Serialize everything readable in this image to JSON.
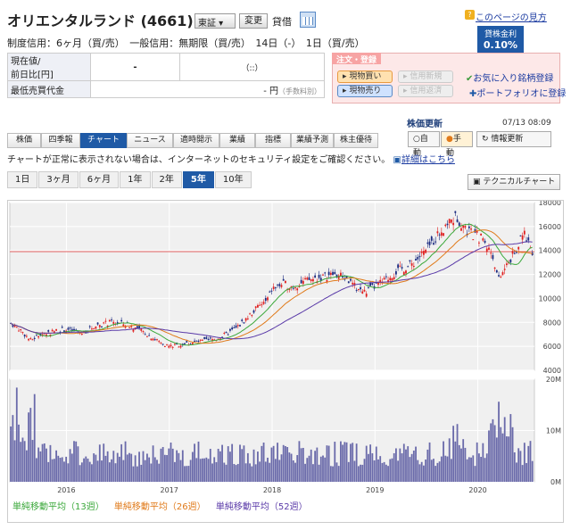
{
  "header": {
    "title": "オリエンタルランド (4661)",
    "market": "東証",
    "change_btn": "変更",
    "kashi": "貸借",
    "help_link": "このページの見方"
  },
  "kinri": {
    "label": "貸株金利",
    "value": "0.10%"
  },
  "credit_info": "制度信用：6ヶ月（買/売）　一般信用：無期限（買/売）　14日（-）　1日（買/売）",
  "quote": {
    "price_label": "現在値/",
    "prev_label": "前日比[円]",
    "price_value": "-",
    "time_value": "（::）",
    "min_label": "最低売買代金",
    "min_value": "- 円",
    "min_note": "（手数料別）"
  },
  "order": {
    "head": "注文・登録",
    "buy": "現物買い",
    "sell": "現物売り",
    "credit_new": "信用新規",
    "credit_close": "信用返済",
    "fav": "お気に入り銘柄登録",
    "portfolio": "ポートフォリオに登録"
  },
  "update": {
    "label": "株価更新",
    "date": "07/13 08:09",
    "auto": "自動",
    "manual": "手動",
    "refresh": "情報更新"
  },
  "tabs": [
    "株価",
    "四季報",
    "チャート",
    "ニュース",
    "適時開示",
    "業績",
    "指標",
    "業績予測",
    "株主優待"
  ],
  "active_tab": 2,
  "notice": "チャートが正常に表示されない場合は、インターネットのセキュリティ設定をご確認ください。",
  "notice_link": "詳細はこちら",
  "periods": [
    "1日",
    "3ヶ月",
    "6ヶ月",
    "1年",
    "2年",
    "5年",
    "10年"
  ],
  "active_period": 5,
  "tech_chart": "テクニカルチャート",
  "legend": {
    "ma13": "単純移動平均（13週）",
    "ma26": "単純移動平均（26週）",
    "ma52": "単純移動平均（52週）",
    "color13": "#3aa83a",
    "color26": "#e07a1a",
    "color52": "#5a3aa8"
  },
  "chart_data": {
    "type": "line",
    "x_labels": [
      "2016",
      "2017",
      "2018",
      "2019",
      "2020"
    ],
    "price_axis": [
      4000,
      6000,
      8000,
      10000,
      12000,
      14000,
      16000,
      18000
    ],
    "volume_axis": [
      "0M",
      "10M",
      "20M"
    ],
    "price_ylim": [
      4000,
      18000
    ],
    "reference_line": 13900,
    "price_series": [
      [
        2015.45,
        8000
      ],
      [
        2015.55,
        7400
      ],
      [
        2015.65,
        6500
      ],
      [
        2015.75,
        7000
      ],
      [
        2015.9,
        7300
      ],
      [
        2016.0,
        7400
      ],
      [
        2016.15,
        7100
      ],
      [
        2016.3,
        7800
      ],
      [
        2016.45,
        8000
      ],
      [
        2016.6,
        7800
      ],
      [
        2016.75,
        7200
      ],
      [
        2016.9,
        6400
      ],
      [
        2017.0,
        6000
      ],
      [
        2017.15,
        6200
      ],
      [
        2017.3,
        6400
      ],
      [
        2017.45,
        6600
      ],
      [
        2017.55,
        7000
      ],
      [
        2017.65,
        7500
      ],
      [
        2017.75,
        8300
      ],
      [
        2017.85,
        9200
      ],
      [
        2017.95,
        9800
      ],
      [
        2018.0,
        10800
      ],
      [
        2018.1,
        11200
      ],
      [
        2018.2,
        11000
      ],
      [
        2018.35,
        11500
      ],
      [
        2018.5,
        11800
      ],
      [
        2018.6,
        12000
      ],
      [
        2018.7,
        11800
      ],
      [
        2018.8,
        11000
      ],
      [
        2018.9,
        10500
      ],
      [
        2019.0,
        11000
      ],
      [
        2019.1,
        11500
      ],
      [
        2019.2,
        12200
      ],
      [
        2019.35,
        12800
      ],
      [
        2019.5,
        14000
      ],
      [
        2019.6,
        15200
      ],
      [
        2019.7,
        16300
      ],
      [
        2019.8,
        16800
      ],
      [
        2019.88,
        15800
      ],
      [
        2019.95,
        15300
      ],
      [
        2020.05,
        15000
      ],
      [
        2020.15,
        13500
      ],
      [
        2020.2,
        11500
      ],
      [
        2020.3,
        13000
      ],
      [
        2020.4,
        14500
      ],
      [
        2020.45,
        15500
      ],
      [
        2020.5,
        14500
      ],
      [
        2020.53,
        14000
      ]
    ],
    "ma13_color": "#3aa83a",
    "ma26_color": "#e07a1a",
    "ma52_color": "#5a3aa8"
  }
}
